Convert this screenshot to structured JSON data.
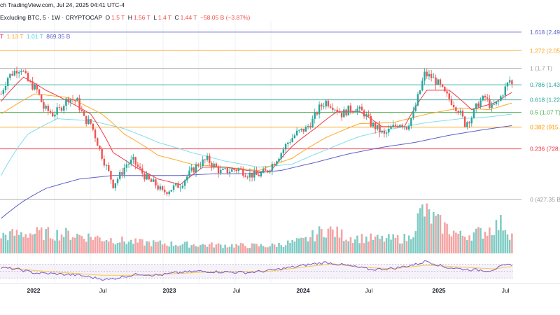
{
  "header": {
    "publish_note": "ch TradingView.com, Jul 24, 2025 04:41 UTC-4",
    "symbol": "Excluding BTC, 5 · 1W · CRYPTOCAP",
    "open_label": "O",
    "open": "1.5 T",
    "high_label": "H",
    "high": "1.56 T",
    "low_label": "L",
    "low": "1.4 T",
    "close_label": "C",
    "close": "1.44 T",
    "change": "−58.05 B (−3.87%)",
    "ma_values": [
      "T",
      "1.13 T",
      "1.01 T",
      "869.35 B"
    ]
  },
  "colors": {
    "up": "#26a69a",
    "down": "#ef5350",
    "vol_up": "#80cbc4",
    "vol_down": "#f5a3a3",
    "ma_fast": "#f23645",
    "ma_mid": "#ffa726",
    "ma_slow": "#80deea",
    "ma_long": "#5b5fc7",
    "rsi": "#7e57c2",
    "rsi_ma": "#f7c948"
  },
  "chart_data": {
    "type": "candlestick",
    "x_axis": {
      "ticks": [
        "2022",
        "Jul",
        "2023",
        "Jul",
        "2024",
        "Jul",
        "2025",
        "Jul"
      ]
    },
    "fib_levels": [
      {
        "ratio": 1.618,
        "label": "1.618 (2.49",
        "color": "#5b5fc7",
        "value": 2.49
      },
      {
        "ratio": 1.272,
        "label": "1.272 (2.05",
        "color": "#ffa726",
        "value": 2.05
      },
      {
        "ratio": 1,
        "label": "1 (1.7 T)",
        "color": "#9e9e9e",
        "value": 1.7
      },
      {
        "ratio": 0.786,
        "label": "0.786 (1.43",
        "color": "#26a69a",
        "value": 1.43
      },
      {
        "ratio": 0.618,
        "label": "0.618 (1.22",
        "color": "#26a69a",
        "value": 1.22
      },
      {
        "ratio": 0.5,
        "label": "0.5 (1.07 T)",
        "color": "#4caf50",
        "value": 1.07
      },
      {
        "ratio": 0.382,
        "label": "0.382 (915.",
        "color": "#ff9800",
        "value": 0.915
      },
      {
        "ratio": 0.236,
        "label": "0.236 (728.",
        "color": "#f23645",
        "value": 0.728
      },
      {
        "ratio": 0,
        "label": "0 (427.35 B",
        "color": "#9e9e9e",
        "value": 0.42735
      }
    ],
    "price_keypoints": [
      [
        0,
        1.3
      ],
      [
        3,
        1.55
      ],
      [
        7,
        1.68
      ],
      [
        9,
        1.7
      ],
      [
        12,
        1.48
      ],
      [
        16,
        1.35
      ],
      [
        19,
        1.12
      ],
      [
        23,
        1.05
      ],
      [
        26,
        1.1
      ],
      [
        30,
        1.25
      ],
      [
        34,
        1.2
      ],
      [
        37,
        1.0
      ],
      [
        40,
        0.95
      ],
      [
        44,
        0.72
      ],
      [
        47,
        0.6
      ],
      [
        50,
        0.5
      ],
      [
        53,
        0.55
      ],
      [
        56,
        0.62
      ],
      [
        59,
        0.64
      ],
      [
        62,
        0.58
      ],
      [
        66,
        0.52
      ],
      [
        69,
        0.5
      ],
      [
        72,
        0.46
      ],
      [
        76,
        0.48
      ],
      [
        80,
        0.5
      ],
      [
        84,
        0.56
      ],
      [
        88,
        0.62
      ],
      [
        92,
        0.65
      ],
      [
        95,
        0.61
      ],
      [
        98,
        0.57
      ],
      [
        102,
        0.58
      ],
      [
        106,
        0.59
      ],
      [
        110,
        0.56
      ],
      [
        114,
        0.55
      ],
      [
        118,
        0.57
      ],
      [
        121,
        0.62
      ],
      [
        125,
        0.7
      ],
      [
        128,
        0.78
      ],
      [
        132,
        0.86
      ],
      [
        136,
        0.9
      ],
      [
        139,
        0.98
      ],
      [
        142,
        1.12
      ],
      [
        145,
        1.2
      ],
      [
        148,
        1.15
      ],
      [
        152,
        1.05
      ],
      [
        155,
        1.1
      ],
      [
        158,
        1.12
      ],
      [
        162,
        1.06
      ],
      [
        165,
        0.95
      ],
      [
        168,
        0.9
      ],
      [
        171,
        0.84
      ],
      [
        174,
        0.9
      ],
      [
        178,
        0.96
      ],
      [
        181,
        0.92
      ],
      [
        184,
        1.05
      ],
      [
        187,
        1.35
      ],
      [
        189,
        1.6
      ],
      [
        192,
        1.55
      ],
      [
        195,
        1.45
      ],
      [
        198,
        1.3
      ],
      [
        201,
        1.2
      ],
      [
        204,
        1.1
      ],
      [
        207,
        0.95
      ],
      [
        210,
        1.02
      ],
      [
        213,
        1.18
      ],
      [
        216,
        1.25
      ],
      [
        219,
        1.12
      ],
      [
        222,
        1.2
      ],
      [
        225,
        1.38
      ],
      [
        227,
        1.5
      ],
      [
        228,
        1.44
      ]
    ],
    "price_range": [
      0.35,
      2.8
    ],
    "ma_fast_keypoints": [
      [
        0,
        1.2
      ],
      [
        10,
        1.55
      ],
      [
        20,
        1.35
      ],
      [
        30,
        1.2
      ],
      [
        40,
        1.05
      ],
      [
        50,
        0.7
      ],
      [
        60,
        0.6
      ],
      [
        70,
        0.53
      ],
      [
        80,
        0.5
      ],
      [
        90,
        0.6
      ],
      [
        100,
        0.6
      ],
      [
        110,
        0.58
      ],
      [
        120,
        0.57
      ],
      [
        130,
        0.75
      ],
      [
        140,
        0.9
      ],
      [
        150,
        1.08
      ],
      [
        160,
        1.08
      ],
      [
        170,
        0.92
      ],
      [
        180,
        0.92
      ],
      [
        190,
        1.35
      ],
      [
        200,
        1.35
      ],
      [
        210,
        1.1
      ],
      [
        220,
        1.18
      ],
      [
        228,
        1.32
      ]
    ],
    "ma_mid_keypoints": [
      [
        0,
        1.05
      ],
      [
        15,
        1.3
      ],
      [
        30,
        1.25
      ],
      [
        45,
        1.05
      ],
      [
        55,
        0.85
      ],
      [
        70,
        0.68
      ],
      [
        85,
        0.62
      ],
      [
        100,
        0.6
      ],
      [
        115,
        0.58
      ],
      [
        130,
        0.66
      ],
      [
        145,
        0.82
      ],
      [
        160,
        0.95
      ],
      [
        175,
        0.96
      ],
      [
        190,
        1.05
      ],
      [
        205,
        1.12
      ],
      [
        218,
        1.1
      ],
      [
        228,
        1.18
      ]
    ],
    "ma_slow_keypoints": [
      [
        0,
        0.55
      ],
      [
        12,
        0.85
      ],
      [
        25,
        1.0
      ],
      [
        40,
        0.98
      ],
      [
        55,
        0.9
      ],
      [
        70,
        0.78
      ],
      [
        85,
        0.7
      ],
      [
        100,
        0.64
      ],
      [
        115,
        0.6
      ],
      [
        130,
        0.62
      ],
      [
        145,
        0.72
      ],
      [
        160,
        0.83
      ],
      [
        175,
        0.9
      ],
      [
        190,
        0.96
      ],
      [
        205,
        1.0
      ],
      [
        218,
        1.02
      ],
      [
        228,
        1.05
      ]
    ],
    "ma_long_keypoints": [
      [
        0,
        0.35
      ],
      [
        10,
        0.42
      ],
      [
        20,
        0.48
      ],
      [
        35,
        0.53
      ],
      [
        50,
        0.55
      ],
      [
        65,
        0.55
      ],
      [
        80,
        0.55
      ],
      [
        95,
        0.56
      ],
      [
        110,
        0.56
      ],
      [
        125,
        0.58
      ],
      [
        140,
        0.63
      ],
      [
        155,
        0.69
      ],
      [
        170,
        0.74
      ],
      [
        185,
        0.78
      ],
      [
        200,
        0.84
      ],
      [
        215,
        0.89
      ],
      [
        228,
        0.93
      ]
    ],
    "volume_keypoints": [
      [
        0,
        0.35
      ],
      [
        12,
        0.4
      ],
      [
        30,
        0.38
      ],
      [
        45,
        0.3
      ],
      [
        60,
        0.22
      ],
      [
        80,
        0.18
      ],
      [
        100,
        0.16
      ],
      [
        120,
        0.15
      ],
      [
        135,
        0.25
      ],
      [
        145,
        0.48
      ],
      [
        155,
        0.32
      ],
      [
        170,
        0.28
      ],
      [
        182,
        0.3
      ],
      [
        188,
        0.85
      ],
      [
        195,
        0.6
      ],
      [
        205,
        0.35
      ],
      [
        215,
        0.42
      ],
      [
        224,
        0.6
      ],
      [
        228,
        0.35
      ]
    ],
    "rsi_keypoints": [
      [
        0,
        60
      ],
      [
        8,
        55
      ],
      [
        15,
        45
      ],
      [
        25,
        42
      ],
      [
        35,
        38
      ],
      [
        42,
        30
      ],
      [
        48,
        25
      ],
      [
        55,
        35
      ],
      [
        62,
        42
      ],
      [
        70,
        38
      ],
      [
        78,
        45
      ],
      [
        88,
        50
      ],
      [
        98,
        48
      ],
      [
        110,
        46
      ],
      [
        120,
        52
      ],
      [
        130,
        62
      ],
      [
        140,
        72
      ],
      [
        145,
        76
      ],
      [
        155,
        66
      ],
      [
        165,
        55
      ],
      [
        175,
        58
      ],
      [
        185,
        70
      ],
      [
        190,
        80
      ],
      [
        198,
        62
      ],
      [
        208,
        55
      ],
      [
        218,
        52
      ],
      [
        224,
        65
      ],
      [
        228,
        70
      ]
    ],
    "rsi_ma_keypoints": [
      [
        0,
        62
      ],
      [
        15,
        52
      ],
      [
        30,
        45
      ],
      [
        45,
        38
      ],
      [
        60,
        38
      ],
      [
        75,
        42
      ],
      [
        90,
        47
      ],
      [
        105,
        48
      ],
      [
        120,
        50
      ],
      [
        135,
        62
      ],
      [
        148,
        72
      ],
      [
        160,
        62
      ],
      [
        175,
        57
      ],
      [
        190,
        68
      ],
      [
        205,
        62
      ],
      [
        220,
        57
      ],
      [
        228,
        64
      ]
    ],
    "bars": 229
  }
}
